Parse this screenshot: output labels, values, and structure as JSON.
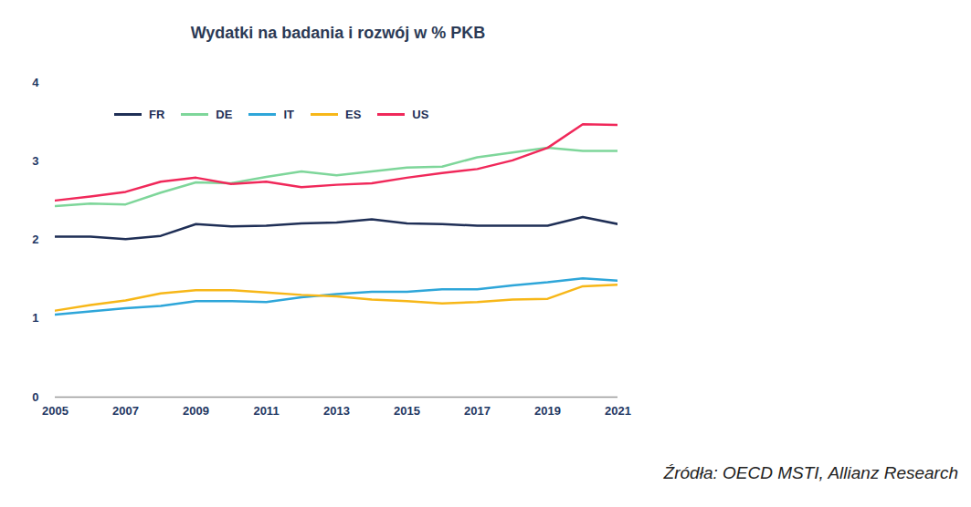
{
  "chart_data": {
    "type": "line",
    "title": "Wydatki na badania i rozwój w % PKB",
    "source": "Źródła: OECD MSTI, Allianz Research",
    "x": [
      2005,
      2006,
      2007,
      2008,
      2009,
      2010,
      2011,
      2012,
      2013,
      2014,
      2015,
      2016,
      2017,
      2018,
      2019,
      2020,
      2021
    ],
    "series": [
      {
        "name": "FR",
        "color": "#1f2f56",
        "values": [
          2.04,
          2.04,
          2.01,
          2.05,
          2.2,
          2.17,
          2.18,
          2.21,
          2.22,
          2.26,
          2.21,
          2.2,
          2.18,
          2.18,
          2.18,
          2.29,
          2.2
        ]
      },
      {
        "name": "DE",
        "color": "#7ed69a",
        "values": [
          2.43,
          2.46,
          2.45,
          2.6,
          2.73,
          2.72,
          2.8,
          2.87,
          2.82,
          2.87,
          2.92,
          2.93,
          3.05,
          3.11,
          3.17,
          3.13,
          3.13
        ]
      },
      {
        "name": "IT",
        "color": "#2ea6d9",
        "values": [
          1.05,
          1.09,
          1.13,
          1.16,
          1.22,
          1.22,
          1.21,
          1.27,
          1.31,
          1.34,
          1.34,
          1.37,
          1.37,
          1.42,
          1.46,
          1.51,
          1.48
        ]
      },
      {
        "name": "ES",
        "color": "#f7b718",
        "values": [
          1.1,
          1.17,
          1.23,
          1.32,
          1.36,
          1.36,
          1.33,
          1.3,
          1.28,
          1.24,
          1.22,
          1.19,
          1.21,
          1.24,
          1.25,
          1.41,
          1.43
        ]
      },
      {
        "name": "US",
        "color": "#f0285a",
        "values": [
          2.5,
          2.55,
          2.61,
          2.74,
          2.79,
          2.71,
          2.74,
          2.67,
          2.7,
          2.72,
          2.79,
          2.85,
          2.9,
          3.01,
          3.17,
          3.47,
          3.46
        ]
      }
    ],
    "xlim": [
      2005,
      2021
    ],
    "xticks": [
      2005,
      2007,
      2009,
      2011,
      2013,
      2015,
      2017,
      2019,
      2021
    ],
    "ylim": [
      0,
      4
    ],
    "yticks": [
      0,
      1,
      2,
      3,
      4
    ],
    "grid": false,
    "legend": "top"
  }
}
